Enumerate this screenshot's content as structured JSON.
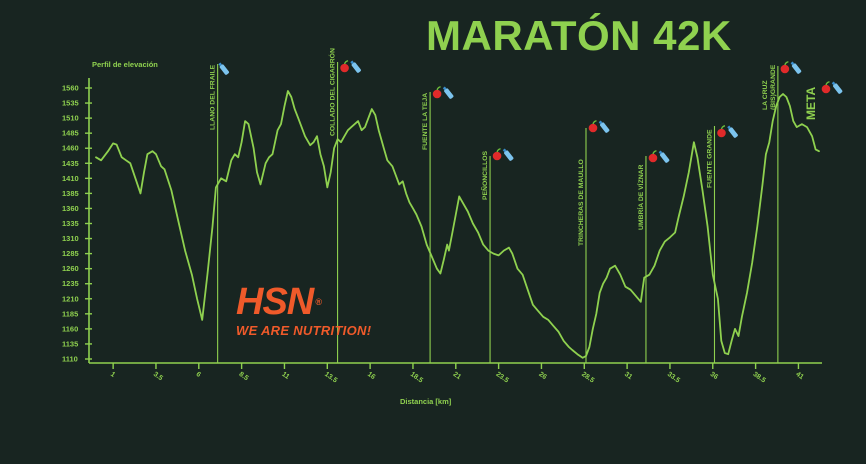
{
  "title": "MARATÓN 42K",
  "brand": {
    "name": "HSN",
    "tagline": "WE ARE NUTRITION!"
  },
  "colors": {
    "background": "#182521",
    "accent": "#8fd14f",
    "brand": "#ef5a2a"
  },
  "chart_data": {
    "type": "line",
    "title": "",
    "ylabel": "Perfil de elevación",
    "xlabel": "Distancia [km]",
    "xlim": [
      0,
      42.2
    ],
    "ylim": [
      1110,
      1560
    ],
    "grid": false,
    "x_ticks": [
      "1",
      "3.5",
      "6",
      "8.5",
      "11",
      "13.5",
      "16",
      "18.5",
      "21",
      "23.5",
      "26",
      "28.5",
      "31",
      "33.5",
      "36",
      "38.5",
      "41"
    ],
    "y_ticks": [
      "1560",
      "1535",
      "1510",
      "1485",
      "1460",
      "1435",
      "1410",
      "1385",
      "1360",
      "1335",
      "1310",
      "1285",
      "1260",
      "1235",
      "1210",
      "1185",
      "1160",
      "1135",
      "1110"
    ],
    "series": [
      {
        "points": [
          [
            0,
            1445
          ],
          [
            0.3,
            1440
          ],
          [
            0.7,
            1455
          ],
          [
            1.0,
            1468
          ],
          [
            1.2,
            1466
          ],
          [
            1.5,
            1445
          ],
          [
            2.0,
            1435
          ],
          [
            2.3,
            1410
          ],
          [
            2.6,
            1385
          ],
          [
            2.8,
            1420
          ],
          [
            3.0,
            1450
          ],
          [
            3.3,
            1455
          ],
          [
            3.5,
            1450
          ],
          [
            3.8,
            1430
          ],
          [
            4.0,
            1425
          ],
          [
            4.4,
            1390
          ],
          [
            4.8,
            1340
          ],
          [
            5.2,
            1290
          ],
          [
            5.6,
            1250
          ],
          [
            5.9,
            1210
          ],
          [
            6.2,
            1175
          ],
          [
            6.5,
            1250
          ],
          [
            6.8,
            1330
          ],
          [
            7.0,
            1395
          ],
          [
            7.3,
            1410
          ],
          [
            7.6,
            1405
          ],
          [
            7.9,
            1440
          ],
          [
            8.1,
            1450
          ],
          [
            8.3,
            1445
          ],
          [
            8.5,
            1470
          ],
          [
            8.7,
            1505
          ],
          [
            8.9,
            1500
          ],
          [
            9.2,
            1460
          ],
          [
            9.4,
            1420
          ],
          [
            9.6,
            1400
          ],
          [
            9.9,
            1435
          ],
          [
            10.1,
            1445
          ],
          [
            10.3,
            1450
          ],
          [
            10.6,
            1490
          ],
          [
            10.8,
            1500
          ],
          [
            11.0,
            1530
          ],
          [
            11.2,
            1555
          ],
          [
            11.4,
            1545
          ],
          [
            11.6,
            1525
          ],
          [
            11.8,
            1510
          ],
          [
            12.0,
            1495
          ],
          [
            12.2,
            1480
          ],
          [
            12.5,
            1465
          ],
          [
            12.7,
            1470
          ],
          [
            12.9,
            1480
          ],
          [
            13.1,
            1450
          ],
          [
            13.3,
            1430
          ],
          [
            13.5,
            1395
          ],
          [
            13.7,
            1420
          ],
          [
            13.9,
            1460
          ],
          [
            14.1,
            1475
          ],
          [
            14.3,
            1470
          ],
          [
            14.5,
            1480
          ],
          [
            14.7,
            1490
          ],
          [
            14.9,
            1495
          ],
          [
            15.1,
            1500
          ],
          [
            15.3,
            1505
          ],
          [
            15.5,
            1490
          ],
          [
            15.7,
            1495
          ],
          [
            15.9,
            1510
          ],
          [
            16.1,
            1525
          ],
          [
            16.3,
            1515
          ],
          [
            16.5,
            1490
          ],
          [
            16.8,
            1460
          ],
          [
            17.0,
            1440
          ],
          [
            17.3,
            1430
          ],
          [
            17.5,
            1415
          ],
          [
            17.7,
            1400
          ],
          [
            17.9,
            1405
          ],
          [
            18.1,
            1385
          ],
          [
            18.3,
            1370
          ],
          [
            18.5,
            1360
          ],
          [
            18.7,
            1350
          ],
          [
            19.0,
            1330
          ],
          [
            19.3,
            1300
          ],
          [
            19.6,
            1280
          ],
          [
            19.9,
            1260
          ],
          [
            20.1,
            1252
          ],
          [
            20.3,
            1275
          ],
          [
            20.5,
            1300
          ],
          [
            20.6,
            1290
          ],
          [
            20.8,
            1320
          ],
          [
            21.0,
            1350
          ],
          [
            21.2,
            1380
          ],
          [
            21.4,
            1370
          ],
          [
            21.7,
            1355
          ],
          [
            22.0,
            1335
          ],
          [
            22.3,
            1320
          ],
          [
            22.6,
            1300
          ],
          [
            22.9,
            1290
          ],
          [
            23.2,
            1285
          ],
          [
            23.5,
            1282
          ],
          [
            23.8,
            1290
          ],
          [
            24.1,
            1295
          ],
          [
            24.3,
            1285
          ],
          [
            24.6,
            1260
          ],
          [
            24.9,
            1250
          ],
          [
            25.2,
            1225
          ],
          [
            25.5,
            1200
          ],
          [
            25.8,
            1190
          ],
          [
            26.1,
            1180
          ],
          [
            26.4,
            1175
          ],
          [
            26.7,
            1165
          ],
          [
            27.0,
            1155
          ],
          [
            27.3,
            1140
          ],
          [
            27.6,
            1130
          ],
          [
            27.8,
            1125
          ],
          [
            28.1,
            1118
          ],
          [
            28.4,
            1112
          ],
          [
            28.6,
            1115
          ],
          [
            28.8,
            1130
          ],
          [
            29.0,
            1160
          ],
          [
            29.2,
            1185
          ],
          [
            29.4,
            1220
          ],
          [
            29.6,
            1235
          ],
          [
            29.8,
            1245
          ],
          [
            30.0,
            1260
          ],
          [
            30.3,
            1265
          ],
          [
            30.6,
            1250
          ],
          [
            30.9,
            1230
          ],
          [
            31.2,
            1225
          ],
          [
            31.5,
            1215
          ],
          [
            31.8,
            1205
          ],
          [
            32.0,
            1245
          ],
          [
            32.3,
            1250
          ],
          [
            32.6,
            1265
          ],
          [
            32.9,
            1290
          ],
          [
            33.2,
            1305
          ],
          [
            33.5,
            1312
          ],
          [
            33.8,
            1320
          ],
          [
            34.0,
            1345
          ],
          [
            34.3,
            1380
          ],
          [
            34.6,
            1420
          ],
          [
            34.9,
            1470
          ],
          [
            35.1,
            1445
          ],
          [
            35.4,
            1390
          ],
          [
            35.7,
            1330
          ],
          [
            36.0,
            1250
          ],
          [
            36.3,
            1210
          ],
          [
            36.5,
            1140
          ],
          [
            36.7,
            1120
          ],
          [
            36.9,
            1118
          ],
          [
            37.1,
            1140
          ],
          [
            37.3,
            1160
          ],
          [
            37.5,
            1148
          ],
          [
            37.7,
            1180
          ],
          [
            38.0,
            1220
          ],
          [
            38.3,
            1270
          ],
          [
            38.6,
            1330
          ],
          [
            38.9,
            1400
          ],
          [
            39.1,
            1450
          ],
          [
            39.3,
            1470
          ],
          [
            39.5,
            1505
          ],
          [
            39.7,
            1530
          ],
          [
            39.9,
            1545
          ],
          [
            40.1,
            1550
          ],
          [
            40.3,
            1545
          ],
          [
            40.5,
            1530
          ],
          [
            40.7,
            1505
          ],
          [
            40.9,
            1495
          ],
          [
            41.2,
            1500
          ],
          [
            41.5,
            1495
          ],
          [
            41.8,
            1480
          ],
          [
            42.0,
            1458
          ],
          [
            42.2,
            1455
          ]
        ]
      }
    ],
    "annotations": [
      {
        "label": "LLANO DEL FRAILE",
        "km": 7.1,
        "icons": [
          "water"
        ]
      },
      {
        "label": "COLLADO DEL CIGARRÓN",
        "km": 14.1,
        "icons": [
          "fruit",
          "water"
        ]
      },
      {
        "label": "FUENTE LA TEJA",
        "km": 19.5,
        "icons": [
          "fruit",
          "water"
        ]
      },
      {
        "label": "PEÑONCILLOS",
        "km": 23.0,
        "icons": [
          "fruit",
          "water"
        ]
      },
      {
        "label": "TRINCHERAS DE MAULLO",
        "km": 28.6,
        "icons": [
          "fruit",
          "water"
        ]
      },
      {
        "label": "UMBRÍA DE VÍZNAR",
        "km": 32.1,
        "icons": [
          "fruit",
          "water"
        ]
      },
      {
        "label": "FUENTE GRANDE",
        "km": 36.1,
        "icons": [
          "fruit",
          "water"
        ]
      },
      {
        "label": "LA CRUZ (BIS)GRANDE",
        "km": 39.8,
        "icons": [
          "fruit",
          "water"
        ]
      },
      {
        "label": "META",
        "km": 42.2,
        "icons": [
          "fruit",
          "water"
        ]
      }
    ]
  }
}
